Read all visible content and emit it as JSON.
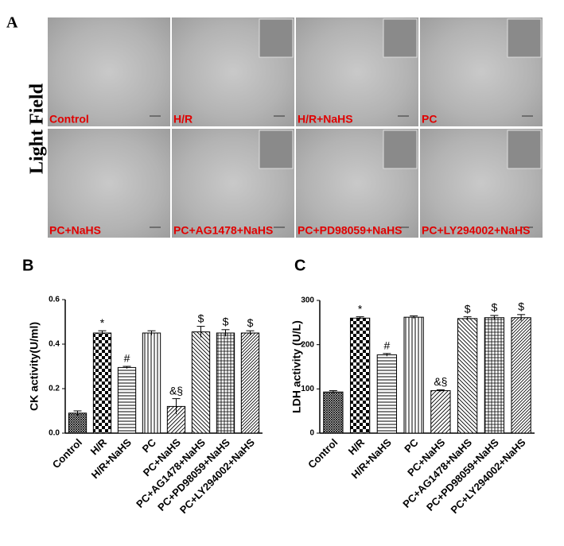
{
  "panel_labels": [
    "A",
    "B",
    "C"
  ],
  "light_field_label": "Light  Field",
  "micrographs": [
    "Control",
    "H/R",
    "H/R+NaHS",
    "PC",
    "PC+NaHS",
    "PC+AG1478+NaHS",
    "PC+PD98059+NaHS",
    "PC+LY294002+NaHS"
  ],
  "chart_data": [
    {
      "type": "bar",
      "y_label": "CK activity(U/ml)",
      "categories": [
        "Control",
        "H/R",
        "H/R+NaHS",
        "PC",
        "PC+NaHS",
        "PC+AG1478+NaHS",
        "PC+PD98059+NaHS",
        "PC+LY294002+NaHS"
      ],
      "values": [
        0.09,
        0.45,
        0.295,
        0.45,
        0.12,
        0.455,
        0.45,
        0.45
      ],
      "errors": [
        0.01,
        0.01,
        0.005,
        0.01,
        0.035,
        0.025,
        0.015,
        0.01
      ],
      "annotations": [
        null,
        "*",
        "#",
        null,
        "&§",
        "$",
        "$",
        "$"
      ],
      "ylim": [
        0,
        0.6
      ],
      "yticks": [
        {
          "value": 0,
          "label": "0.0"
        },
        0.2,
        0.4,
        0.6
      ],
      "grid": false
    },
    {
      "type": "bar",
      "y_label": "LDH activity (U/L)",
      "categories": [
        "Control",
        "H/R",
        "H/R+NaHS",
        "PC",
        "PC+NaHS",
        "PC+AG1478+NaHS",
        "PC+PD98059+NaHS",
        "PC+LY294002+NaHS"
      ],
      "values": [
        93,
        260,
        177,
        262,
        96,
        259,
        261,
        261
      ],
      "errors": [
        3,
        3,
        3,
        3,
        2,
        4,
        5,
        7
      ],
      "annotations": [
        null,
        "*",
        "#",
        null,
        "&§",
        "$",
        "$",
        "$"
      ],
      "ylim": [
        0,
        300
      ],
      "yticks": [
        0,
        100,
        200,
        300
      ],
      "grid": false
    }
  ]
}
